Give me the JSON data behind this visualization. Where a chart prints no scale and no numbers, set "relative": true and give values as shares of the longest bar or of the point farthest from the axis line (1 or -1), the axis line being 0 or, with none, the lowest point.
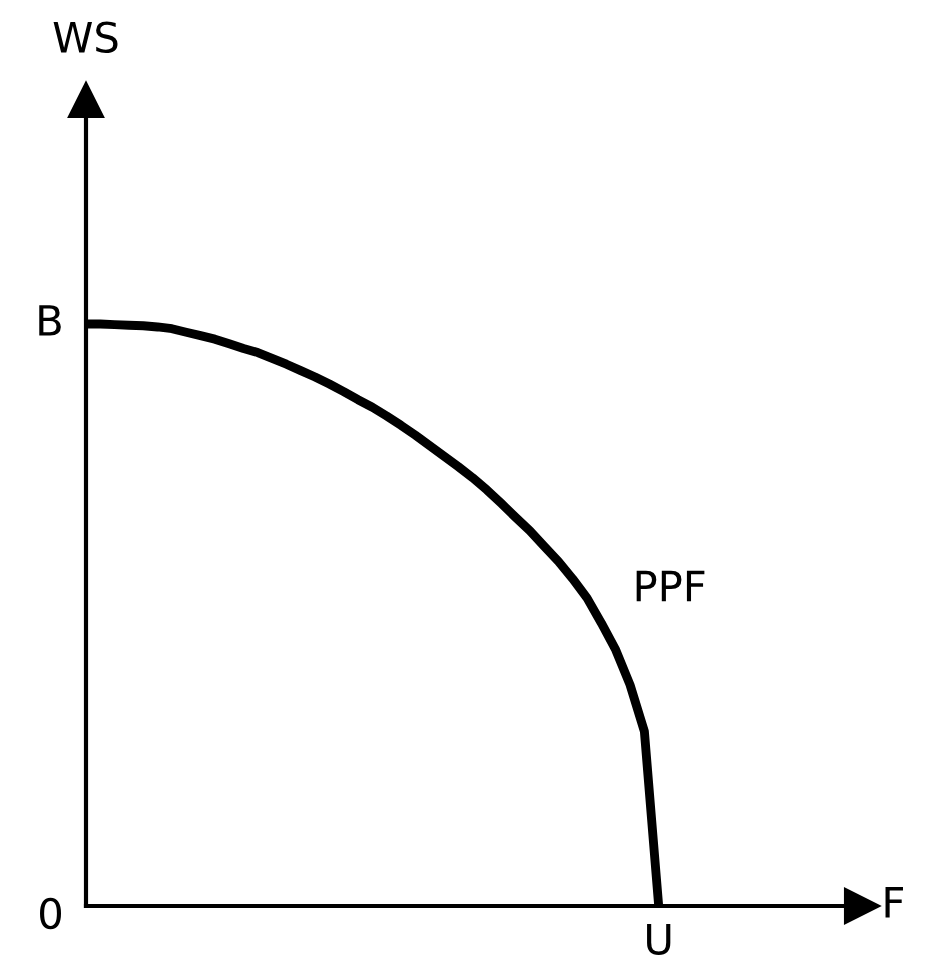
{
  "chart_data": {
    "type": "line",
    "relative": true,
    "categories": [
      null,
      null,
      null,
      null,
      null,
      null,
      null,
      null,
      null,
      null,
      null,
      null,
      null,
      null,
      null,
      null,
      null,
      null,
      null,
      null,
      null,
      null,
      null,
      null,
      null,
      null,
      null,
      null,
      null,
      null,
      null,
      null,
      null,
      null,
      null,
      null,
      null,
      null,
      null,
      null,
      null
    ],
    "series": [
      {
        "color": "#000000",
        "values": [
          1,
          1,
          0.999,
          0.998,
          0.997,
          0.995,
          0.992,
          0.986,
          0.98,
          0.974,
          0.966,
          0.958,
          0.951,
          0.941,
          0.931,
          0.92,
          0.909,
          0.897,
          0.884,
          0.87,
          0.857,
          0.842,
          0.826,
          0.809,
          0.791,
          0.773,
          0.755,
          0.736,
          0.715,
          0.692,
          0.668,
          0.645,
          0.618,
          0.592,
          0.562,
          0.529,
          0.486,
          0.44,
          0.38,
          0.3,
          0
        ]
      }
    ],
    "annotations": [
      "PPF",
      "B",
      "0",
      "U",
      "F",
      "WS"
    ],
    "grid": false,
    "legend": false,
    "marker": "none",
    "line_style": "solid"
  }
}
